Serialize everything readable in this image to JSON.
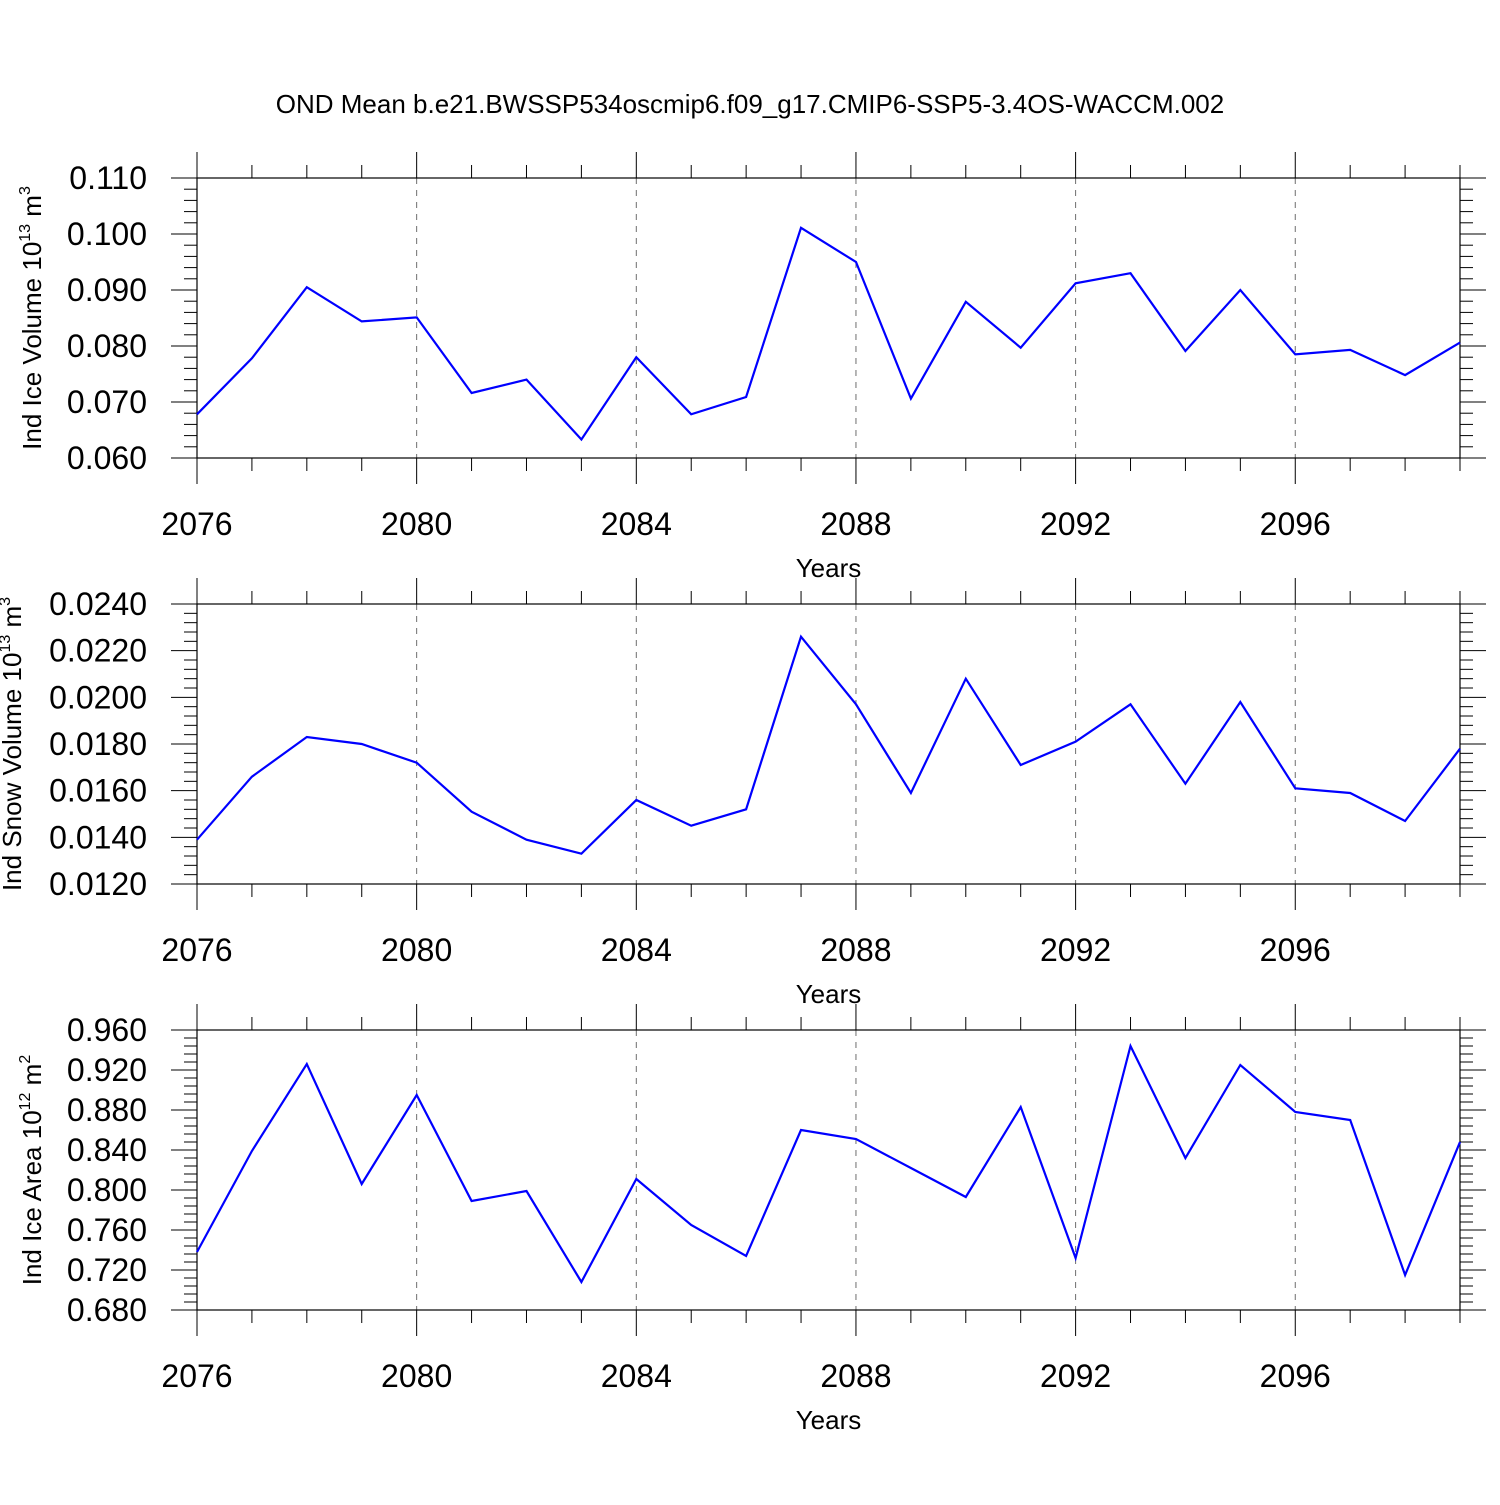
{
  "title": "OND Mean b.e21.BWSSP534oscmip6.f09_g17.CMIP6-SSP5-3.4OS-WACCM.002",
  "chart_data": [
    {
      "type": "line",
      "xlabel": "Years",
      "ylabel": {
        "text": "Ind Ice Volume 10",
        "sup": "13",
        "unit": " m",
        "unit_sup": "3"
      },
      "xlim": [
        2076,
        2099
      ],
      "ylim": [
        0.06,
        0.11
      ],
      "xticks": [
        "2076",
        "2080",
        "2084",
        "2088",
        "2092",
        "2096"
      ],
      "yticks": [
        "0.060",
        "0.070",
        "0.080",
        "0.090",
        "0.100",
        "0.110"
      ],
      "ytick_values": [
        0.06,
        0.07,
        0.08,
        0.09,
        0.1,
        0.11
      ],
      "grid": "vertical dashed at major x ticks",
      "color": "#0000ff",
      "x": [
        2076,
        2077,
        2078,
        2079,
        2080,
        2081,
        2082,
        2083,
        2084,
        2085,
        2086,
        2087,
        2088,
        2089,
        2090,
        2091,
        2092,
        2093,
        2094,
        2095,
        2096,
        2097,
        2098,
        2099
      ],
      "y": [
        0.0678,
        0.0778,
        0.0905,
        0.0844,
        0.0851,
        0.0716,
        0.074,
        0.0633,
        0.078,
        0.0678,
        0.0709,
        0.1011,
        0.095,
        0.0706,
        0.0879,
        0.0797,
        0.0912,
        0.093,
        0.0791,
        0.09,
        0.0785,
        0.0793,
        0.0748,
        0.0806
      ]
    },
    {
      "type": "line",
      "xlabel": "Years",
      "ylabel": {
        "text": "Ind Snow Volume 10",
        "sup": "13",
        "unit": " m",
        "unit_sup": "3"
      },
      "xlim": [
        2076,
        2099
      ],
      "ylim": [
        0.012,
        0.024
      ],
      "xticks": [
        "2076",
        "2080",
        "2084",
        "2088",
        "2092",
        "2096"
      ],
      "yticks": [
        "0.0120",
        "0.0140",
        "0.0160",
        "0.0180",
        "0.0200",
        "0.0220",
        "0.0240"
      ],
      "ytick_values": [
        0.012,
        0.014,
        0.016,
        0.018,
        0.02,
        0.022,
        0.024
      ],
      "grid": "vertical dashed at major x ticks",
      "color": "#0000ff",
      "x": [
        2076,
        2077,
        2078,
        2079,
        2080,
        2081,
        2082,
        2083,
        2084,
        2085,
        2086,
        2087,
        2088,
        2089,
        2090,
        2091,
        2092,
        2093,
        2094,
        2095,
        2096,
        2097,
        2098,
        2099
      ],
      "y": [
        0.0139,
        0.0166,
        0.0183,
        0.018,
        0.0172,
        0.0151,
        0.0139,
        0.0133,
        0.0156,
        0.0145,
        0.0152,
        0.0226,
        0.0197,
        0.0159,
        0.0208,
        0.0171,
        0.0181,
        0.0197,
        0.0163,
        0.0198,
        0.0161,
        0.0159,
        0.0147,
        0.0178
      ]
    },
    {
      "type": "line",
      "xlabel": "Years",
      "ylabel": {
        "text": "Ind Ice Area 10",
        "sup": "12",
        "unit": " m",
        "unit_sup": "2"
      },
      "xlim": [
        2076,
        2099
      ],
      "ylim": [
        0.68,
        0.96
      ],
      "xticks": [
        "2076",
        "2080",
        "2084",
        "2088",
        "2092",
        "2096"
      ],
      "yticks": [
        "0.680",
        "0.720",
        "0.760",
        "0.800",
        "0.840",
        "0.880",
        "0.920",
        "0.960"
      ],
      "ytick_values": [
        0.68,
        0.72,
        0.76,
        0.8,
        0.84,
        0.88,
        0.92,
        0.96
      ],
      "grid": "vertical dashed at major x ticks",
      "color": "#0000ff",
      "x": [
        2076,
        2077,
        2078,
        2079,
        2080,
        2081,
        2082,
        2083,
        2084,
        2085,
        2086,
        2087,
        2088,
        2089,
        2090,
        2091,
        2092,
        2093,
        2094,
        2095,
        2096,
        2097,
        2098,
        2099
      ],
      "y": [
        0.738,
        0.839,
        0.926,
        0.806,
        0.895,
        0.789,
        0.799,
        0.708,
        0.811,
        0.765,
        0.734,
        0.86,
        0.851,
        0.822,
        0.793,
        0.883,
        0.732,
        0.944,
        0.832,
        0.925,
        0.878,
        0.87,
        0.715,
        0.848
      ]
    }
  ]
}
